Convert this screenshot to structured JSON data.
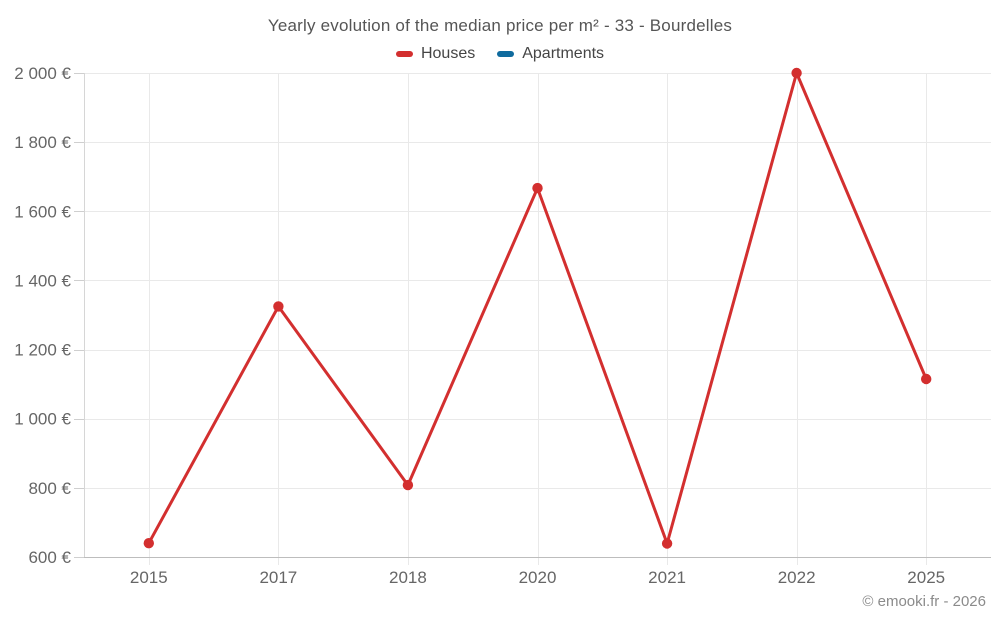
{
  "footer": "© emooki.fr - 2026",
  "chart_data": {
    "type": "line",
    "title": "Yearly evolution of the median price per m² - 33 - Bourdelles",
    "categories": [
      "2015",
      "2017",
      "2018",
      "2020",
      "2021",
      "2022",
      "2025"
    ],
    "series": [
      {
        "name": "Houses",
        "color": "#d32f2f",
        "values": [
          640,
          1325,
          808,
          1667,
          639,
          2000,
          1115
        ]
      },
      {
        "name": "Apartments",
        "color": "#0f6b9e",
        "values": []
      }
    ],
    "ylim": [
      600,
      2000
    ],
    "yticks": [
      600,
      800,
      1000,
      1200,
      1400,
      1600,
      1800,
      2000
    ],
    "ytick_labels": [
      "600 €",
      "800 €",
      "1 000 €",
      "1 200 €",
      "1 400 €",
      "1 600 €",
      "1 800 €",
      "2 000 €"
    ],
    "grid": true,
    "legend_position": "top",
    "xlabel": "",
    "ylabel": ""
  }
}
